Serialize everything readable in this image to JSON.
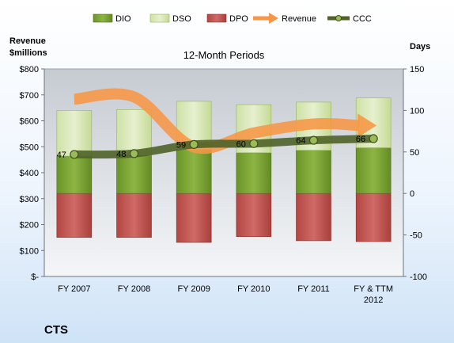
{
  "chart_data": {
    "type": "bar",
    "title": "12-Month Periods",
    "company": "CTS",
    "categories": [
      "FY 2007",
      "FY 2008",
      "FY 2009",
      "FY 2010",
      "FY 2011",
      "FY & TTM 2012"
    ],
    "y_left": {
      "label_line1": "Revenue",
      "label_line2": "$millions",
      "ylim": [
        0,
        800
      ],
      "ticks": [
        0,
        100,
        200,
        300,
        400,
        500,
        600,
        700,
        800
      ],
      "tick_labels": [
        "$-",
        "$100",
        "$200",
        "$300",
        "$400",
        "$500",
        "$600",
        "$700",
        "$800"
      ]
    },
    "y_right": {
      "label": "Days",
      "ylim": [
        -100,
        150
      ],
      "ticks": [
        -100,
        -50,
        0,
        50,
        100,
        150
      ],
      "tick_labels": [
        "-100",
        "-50",
        "0",
        "50",
        "100",
        "150"
      ]
    },
    "series": [
      {
        "name": "DIO",
        "type": "stacked-bar",
        "axis": "right",
        "color": "#77a033",
        "values": [
          45,
          46,
          53,
          49,
          52,
          55
        ]
      },
      {
        "name": "DSO",
        "type": "stacked-bar",
        "axis": "right",
        "color": "#d7e4bc",
        "values": [
          55,
          55,
          58,
          58,
          58,
          60
        ]
      },
      {
        "name": "DPO",
        "type": "bar-negative",
        "axis": "right",
        "color": "#c0504d",
        "values": [
          -53,
          -53,
          -59,
          -52,
          -57,
          -58
        ]
      },
      {
        "name": "Revenue",
        "type": "line-arrow",
        "axis": "left",
        "color": "#f79646",
        "values": [
          683,
          692,
          499,
          553,
          588,
          582
        ]
      },
      {
        "name": "CCC",
        "type": "line-markers",
        "axis": "right",
        "color": "#4f6228",
        "values": [
          47,
          48,
          59,
          60,
          64,
          66
        ]
      }
    ],
    "data_labels": [
      "47",
      "48",
      "59",
      "60",
      "64",
      "66"
    ],
    "legend": {
      "position": "top",
      "entries": [
        "DIO",
        "DSO",
        "DPO",
        "Revenue",
        "CCC"
      ]
    },
    "grid": false
  }
}
